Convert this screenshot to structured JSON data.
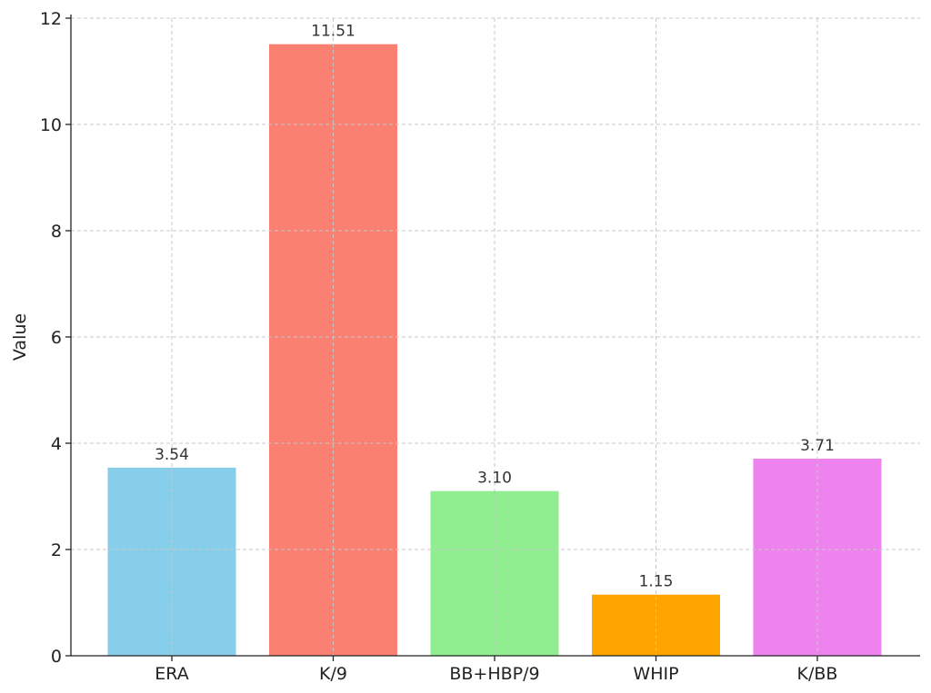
{
  "chart_data": {
    "type": "bar",
    "title": "",
    "xlabel": "",
    "ylabel": "Value",
    "categories": [
      "ERA",
      "K/9",
      "BB+HBP/9",
      "WHIP",
      "K/BB"
    ],
    "values": [
      3.54,
      11.51,
      3.1,
      1.15,
      3.71
    ],
    "value_labels": [
      "3.54",
      "11.51",
      "3.10",
      "1.15",
      "3.71"
    ],
    "colors": [
      "#87ceeb",
      "#fa8072",
      "#90ee90",
      "#ffa500",
      "#ee82ee"
    ],
    "ylim": [
      0,
      12
    ],
    "yticks": [
      0,
      2,
      4,
      6,
      8,
      10,
      12
    ],
    "ytick_labels": [
      "0",
      "2",
      "4",
      "6",
      "8",
      "10",
      "12"
    ],
    "grid": true,
    "legend": "none"
  }
}
